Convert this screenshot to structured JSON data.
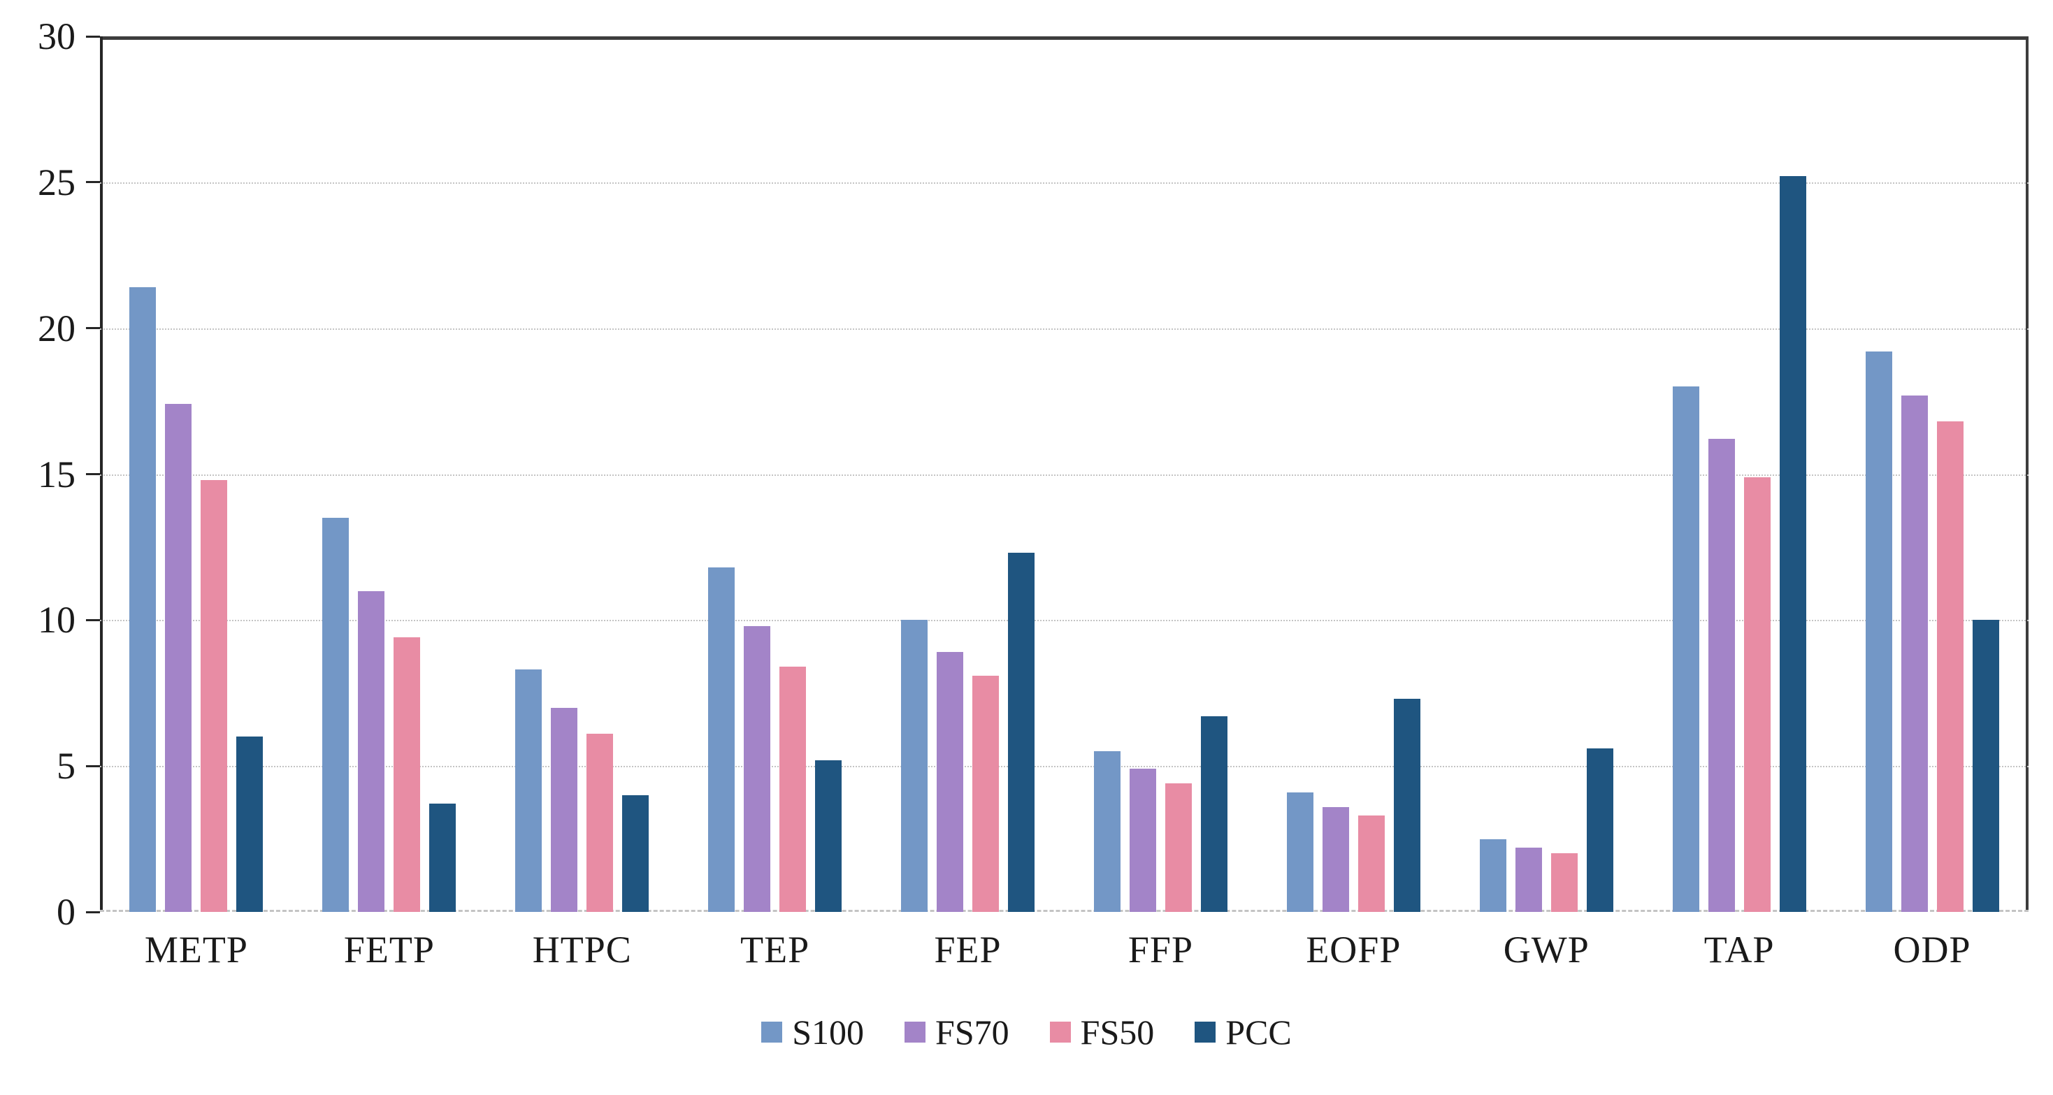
{
  "chart_data": {
    "type": "bar",
    "title": "",
    "xlabel": "",
    "ylabel": "",
    "categories": [
      "METP",
      "FETP",
      "HTPC",
      "TEP",
      "FEP",
      "FFP",
      "EOFP",
      "GWP",
      "TAP",
      "ODP"
    ],
    "series": [
      {
        "name": "S100",
        "color": "#7397C6",
        "values": [
          21.4,
          13.5,
          8.3,
          11.8,
          10.0,
          5.5,
          4.1,
          2.5,
          18.0,
          19.2
        ]
      },
      {
        "name": "FS70",
        "color": "#A384C8",
        "values": [
          17.4,
          11.0,
          7.0,
          9.8,
          8.9,
          4.9,
          3.6,
          2.2,
          16.2,
          17.7
        ]
      },
      {
        "name": "FS50",
        "color": "#E88CA4",
        "values": [
          14.8,
          9.4,
          6.1,
          8.4,
          8.1,
          4.4,
          3.3,
          2.0,
          14.9,
          16.8
        ]
      },
      {
        "name": "PCC",
        "color": "#1F5580",
        "values": [
          6.0,
          3.7,
          4.0,
          5.2,
          12.3,
          6.7,
          7.3,
          5.6,
          25.2,
          10.0
        ]
      }
    ],
    "ylim": [
      0,
      30
    ],
    "ytick_step": 5,
    "ytick_labels": [
      "0",
      "5",
      "10",
      "15",
      "20",
      "25",
      "30"
    ],
    "grid": "horizontal dotted at every 5, on",
    "legend_position": "bottom-center",
    "legend_labels": [
      "S100",
      "FS70",
      "FS50",
      "PCC"
    ]
  },
  "style": {
    "axis_color": "#262626",
    "frame_color": "#3d3d3d",
    "grid_color": "#c4c4c4",
    "text_color": "#1a1a1a",
    "background": "#ffffff"
  }
}
